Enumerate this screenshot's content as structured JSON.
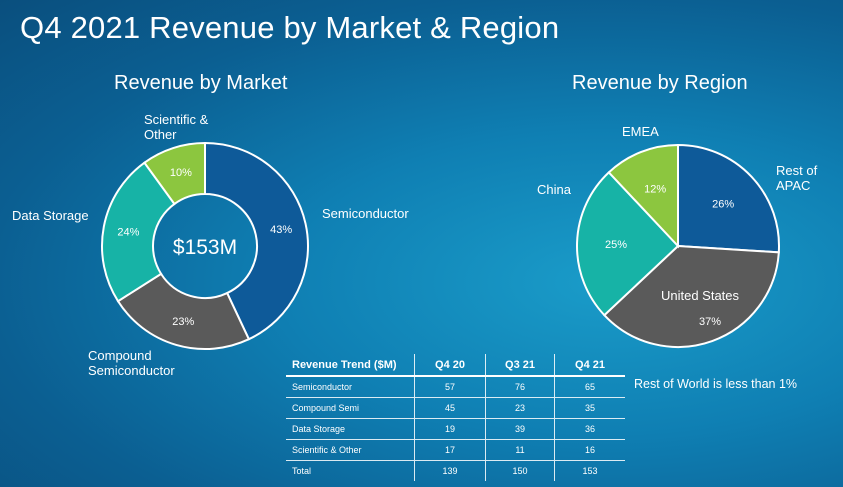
{
  "page": {
    "title": "Q4 2021 Revenue by Market & Region"
  },
  "chart_data": [
    {
      "type": "pie",
      "variant": "donut",
      "title": "Revenue by Market",
      "center_label": "$153M",
      "categories": [
        "Semiconductor",
        "Compound Semiconductor",
        "Data Storage",
        "Scientific & Other"
      ],
      "values": [
        43,
        23,
        24,
        10
      ],
      "value_labels": [
        "43%",
        "23%",
        "24%",
        "10%"
      ],
      "colors": [
        "#0e5a99",
        "#5a5a5a",
        "#17b3a6",
        "#8cc63f"
      ]
    },
    {
      "type": "pie",
      "title": "Revenue by Region",
      "categories": [
        "Rest of APAC",
        "United States",
        "China",
        "EMEA"
      ],
      "values": [
        26,
        37,
        25,
        12
      ],
      "value_labels": [
        "26%",
        "37%",
        "25%",
        "12%"
      ],
      "colors": [
        "#0e5a99",
        "#5a5a5a",
        "#17b3a6",
        "#8cc63f"
      ],
      "note": "Rest of World is less than 1%"
    },
    {
      "type": "table",
      "title": "Revenue Trend ($M)",
      "columns": [
        "Q4 20",
        "Q3 21",
        "Q4 21"
      ],
      "rows": [
        {
          "label": "Semiconductor",
          "values": [
            "57",
            "76",
            "65"
          ]
        },
        {
          "label": "Compound Semi",
          "values": [
            "45",
            "23",
            "35"
          ]
        },
        {
          "label": "Data Storage",
          "values": [
            "19",
            "39",
            "36"
          ]
        },
        {
          "label": "Scientific & Other",
          "values": [
            "17",
            "11",
            "16"
          ]
        },
        {
          "label": "Total",
          "values": [
            "139",
            "150",
            "153"
          ]
        }
      ]
    }
  ],
  "labels": {
    "market": {
      "scientific": "Scientific &\nOther",
      "data_storage": "Data Storage",
      "semiconductor": "Semiconductor",
      "compound": "Compound\nSemiconductor"
    },
    "region": {
      "emea": "EMEA",
      "china": "China",
      "rest_apac": "Rest of\nAPAC",
      "united_states": "United States"
    }
  }
}
